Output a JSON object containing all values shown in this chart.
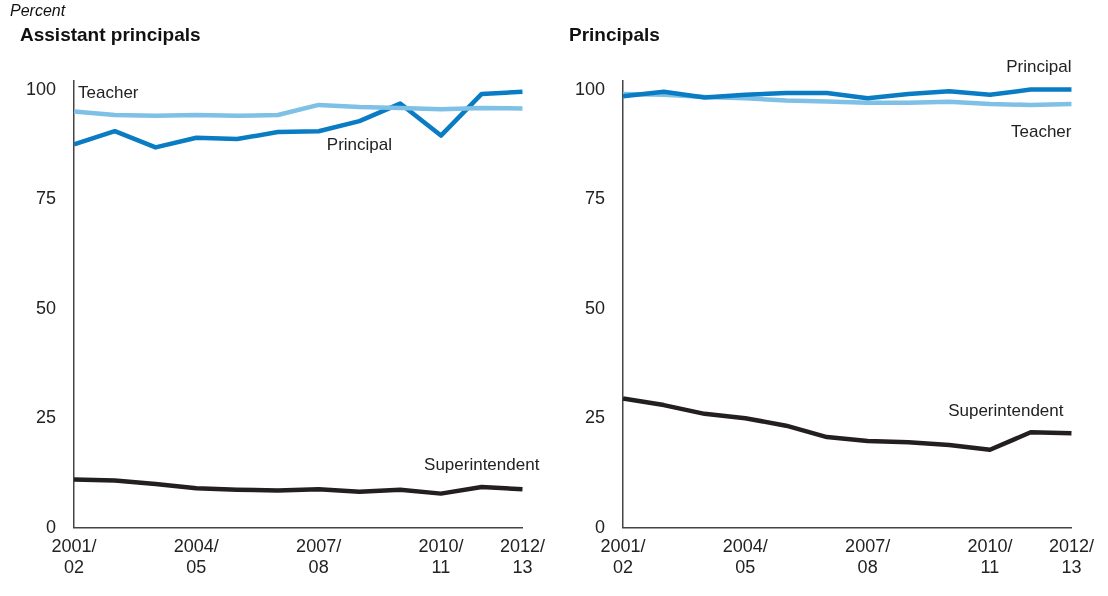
{
  "chart_data": [
    {
      "type": "line",
      "ylabel": "Percent",
      "title": "Assistant principals",
      "categories": [
        "2001/02",
        null,
        null,
        "2004/05",
        null,
        null,
        "2007/08",
        null,
        null,
        "2010/11",
        null,
        "2012/13"
      ],
      "ylim": [
        0,
        102
      ],
      "yticks": [
        0,
        25,
        50,
        75,
        100
      ],
      "grid": false,
      "legend": false,
      "marker": "none",
      "series": [
        {
          "name": "Teacher",
          "color": "#7fc0e6",
          "values": [
            95,
            94.2,
            94,
            94.2,
            94,
            94.2,
            96.5,
            96,
            95.8,
            95.5,
            95.8,
            95.7
          ]
        },
        {
          "name": "Principal",
          "color": "#0a7cc4",
          "values": [
            87.5,
            90.5,
            86.8,
            89,
            88.7,
            90.3,
            90.5,
            92.8,
            96.8,
            89.5,
            99,
            99.5
          ]
        },
        {
          "name": "Superintendent",
          "color": "#231f20",
          "values": [
            11,
            10.8,
            10,
            9,
            8.7,
            8.5,
            8.8,
            8.2,
            8.7,
            7.8,
            9.3,
            8.8
          ]
        }
      ]
    },
    {
      "type": "line",
      "title": "Principals",
      "categories": [
        "2001/02",
        null,
        null,
        "2004/05",
        null,
        null,
        "2007/08",
        null,
        null,
        "2010/11",
        null,
        "2012/13"
      ],
      "ylim": [
        0,
        102
      ],
      "yticks": [
        0,
        25,
        50,
        75,
        100
      ],
      "grid": false,
      "legend": false,
      "marker": "none",
      "series": [
        {
          "name": "Principal",
          "color": "#0a7cc4",
          "values": [
            98.5,
            99.5,
            98.2,
            98.8,
            99.2,
            99.2,
            98,
            99,
            99.6,
            98.8,
            100,
            100
          ]
        },
        {
          "name": "Teacher",
          "color": "#7fc0e6",
          "values": [
            99,
            98.8,
            98.3,
            98,
            97.5,
            97.3,
            97,
            97,
            97.2,
            96.7,
            96.5,
            96.7
          ]
        },
        {
          "name": "Superintendent",
          "color": "#231f20",
          "values": [
            29.5,
            28,
            26,
            25,
            23.3,
            20.7,
            19.8,
            19.5,
            18.9,
            17.8,
            21.8,
            21.6
          ]
        }
      ]
    }
  ]
}
